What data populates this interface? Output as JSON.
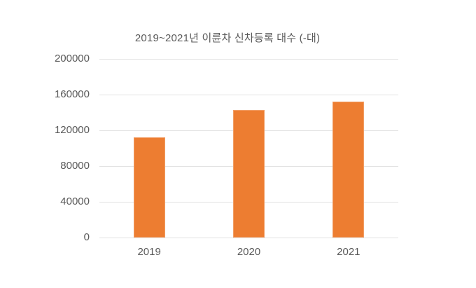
{
  "page": {
    "background_color": "#ffffff",
    "text_color": "#595959"
  },
  "chart_data": {
    "type": "bar",
    "title": "2019~2021년 이륜차 신차등록 대수 (-대)",
    "categories": [
      "2019",
      "2020",
      "2021"
    ],
    "values": [
      112000,
      143000,
      152000
    ],
    "yticks": [
      0,
      40000,
      80000,
      120000,
      160000,
      200000
    ],
    "ylim": [
      0,
      200000
    ],
    "grid": true,
    "legend": false,
    "bar_color": "#ed7d31",
    "grid_color": "#e2e2e2",
    "axis_text_color": "#595959",
    "title_color": "#595959"
  }
}
